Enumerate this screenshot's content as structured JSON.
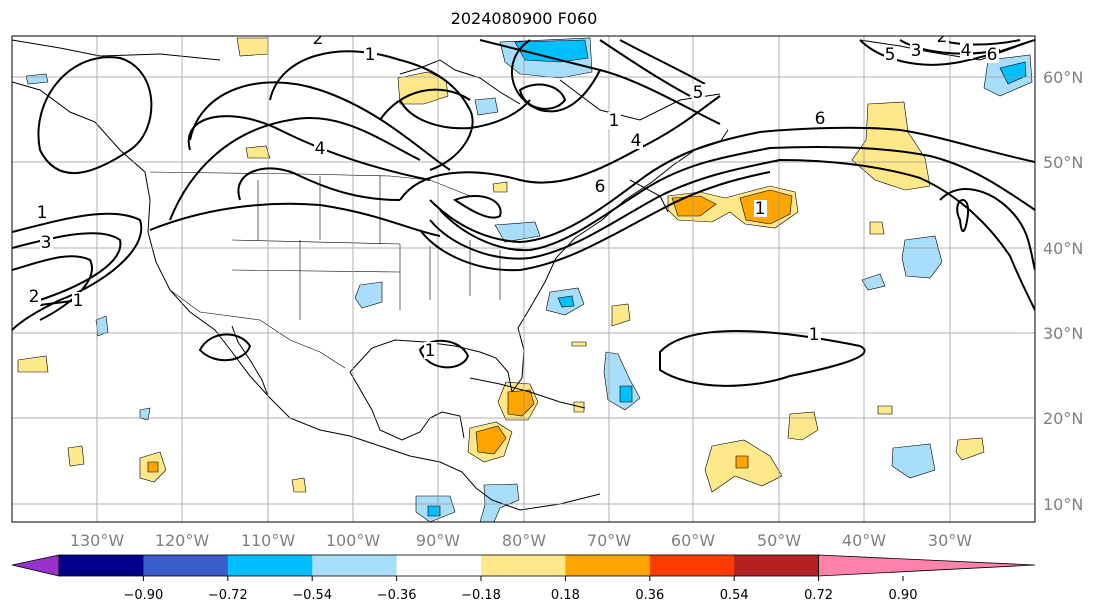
{
  "title": "2024080900 F060",
  "map": {
    "lon_labels": [
      "130°W",
      "120°W",
      "110°W",
      "100°W",
      "90°W",
      "80°W",
      "70°W",
      "60°W",
      "50°W",
      "40°W",
      "30°W"
    ],
    "lat_labels": [
      "60°N",
      "50°N",
      "40°N",
      "30°N",
      "20°N",
      "10°N"
    ],
    "contour_labels": [
      "1",
      "2",
      "3",
      "4",
      "5",
      "6"
    ]
  },
  "colorbar": {
    "ticks": [
      "−0.90",
      "−0.72",
      "−0.54",
      "−0.36",
      "−0.18",
      "0.18",
      "0.36",
      "0.54",
      "0.72",
      "0.90"
    ],
    "colors": [
      "#9932cc",
      "#00008b",
      "#3a5fcd",
      "#00bfff",
      "#a8defa",
      "#ffffff",
      "#ffe88a",
      "#ffa500",
      "#ff3c00",
      "#b22222",
      "#ff82ab"
    ]
  },
  "fill_colors": {
    "light_blue": "#a8defa",
    "blue": "#00bfff",
    "yellow": "#ffe88a",
    "orange": "#ffa500"
  }
}
